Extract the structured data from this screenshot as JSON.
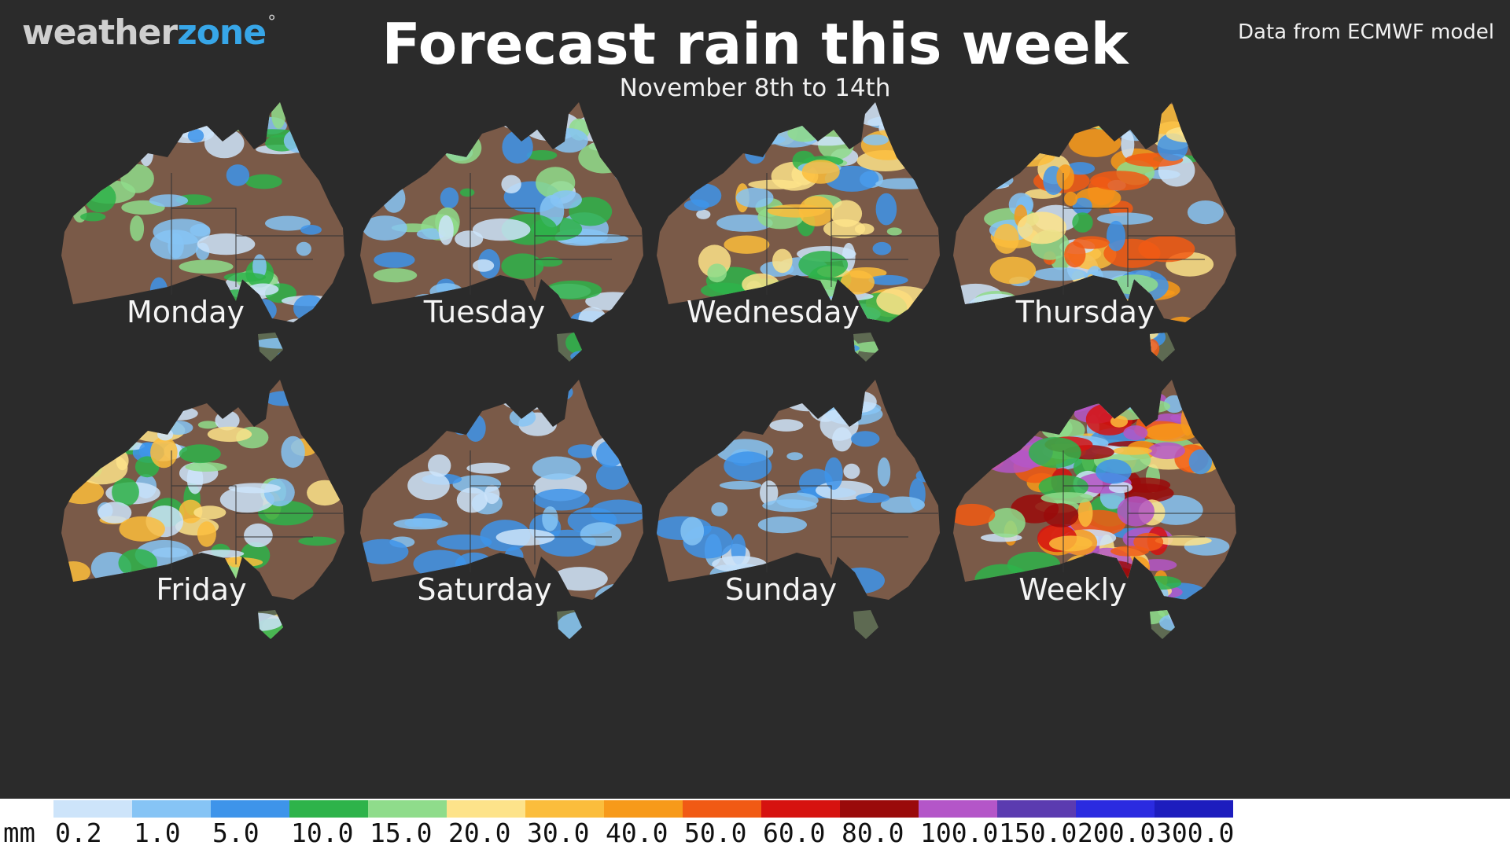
{
  "logo": {
    "part1": "weather",
    "part2": "zone",
    "mark": "°"
  },
  "title": "Forecast rain this week",
  "subtitle": "November 8th to 14th",
  "source": "Data from ECMWF model",
  "panels": [
    {
      "label": "Monday",
      "rain_level": 2
    },
    {
      "label": "Tuesday",
      "rain_level": 2
    },
    {
      "label": "Wednesday",
      "rain_level": 3
    },
    {
      "label": "Thursday",
      "rain_level": 4
    },
    {
      "label": "Friday",
      "rain_level": 3
    },
    {
      "label": "Saturday",
      "rain_level": 1
    },
    {
      "label": "Sunday",
      "rain_level": 1
    },
    {
      "label": "Weekly",
      "rain_level": 6
    }
  ],
  "legend": {
    "unit": "mm",
    "ticks": [
      "0.2",
      "1.0",
      "5.0",
      "10.0",
      "15.0",
      "20.0",
      "30.0",
      "40.0",
      "50.0",
      "60.0",
      "80.0",
      "100.0",
      "150.0",
      "200.0",
      "300.0"
    ],
    "colors": [
      "#cde4fa",
      "#86c4f5",
      "#3e94ea",
      "#2eb34a",
      "#8fdc8b",
      "#fde38a",
      "#fbbd3c",
      "#f79a1a",
      "#f15a14",
      "#d6120f",
      "#9a0a0a",
      "#b456c8",
      "#5b3bb0",
      "#2b2be0",
      "#1d1dbe"
    ]
  }
}
